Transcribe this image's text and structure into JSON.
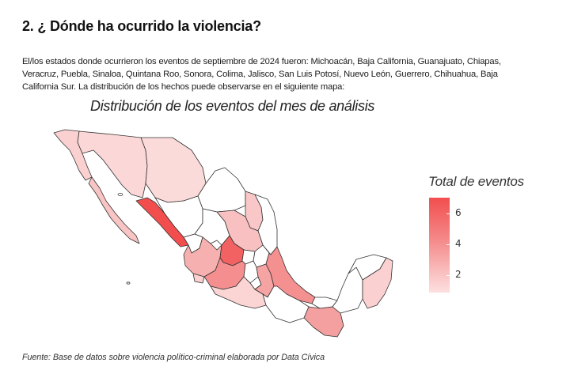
{
  "section": {
    "heading": "2. ¿ Dónde ha ocurrido la violencia?",
    "paragraph": "El/los estados donde ocurrieron los eventos de septiembre de 2024 fueron: Michoacán, Baja California, Guanajuato, Chiapas, Veracruz, Puebla, Sinaloa, Quintana Roo, Sonora, Colima, Jalisco, San Luis Potosí, Nuevo León, Guerrero, Chihuahua, Baja California Sur.  La distribución de los hechos puede observarse en el siguiente mapa:"
  },
  "map": {
    "title": "Distribución de los eventos del mes de análisis",
    "legend": {
      "title": "Total de eventos",
      "ticks": [
        "6",
        "4",
        "2"
      ],
      "color_high": "#f24e4e",
      "color_low": "#fde0e0"
    },
    "states": [
      {
        "name": "Baja California",
        "events": 2,
        "color": "#fbd0d0"
      },
      {
        "name": "Baja California Sur",
        "events": 2,
        "color": "#f9c4c4"
      },
      {
        "name": "Sonora",
        "events": 1,
        "color": "#fbd7d7"
      },
      {
        "name": "Chihuahua",
        "events": 1,
        "color": "#fbdada"
      },
      {
        "name": "Sinaloa",
        "events": 7,
        "color": "#f24e4e"
      },
      {
        "name": "Nuevo León",
        "events": 2,
        "color": "#f9c7c7"
      },
      {
        "name": "San Luis Potosí",
        "events": 2,
        "color": "#f8c0c0"
      },
      {
        "name": "Guanajuato",
        "events": 6,
        "color": "#f26262"
      },
      {
        "name": "Jalisco",
        "events": 3,
        "color": "#f7b0b0"
      },
      {
        "name": "Colima",
        "events": 2,
        "color": "#fbd0d0"
      },
      {
        "name": "Michoacán",
        "events": 4,
        "color": "#f58f8f"
      },
      {
        "name": "Guerrero",
        "events": 2,
        "color": "#fbd4d4"
      },
      {
        "name": "Puebla",
        "events": 3,
        "color": "#f6a3a3"
      },
      {
        "name": "Veracruz",
        "events": 4,
        "color": "#f49090"
      },
      {
        "name": "Chiapas",
        "events": 3,
        "color": "#f5a0a0"
      },
      {
        "name": "Quintana Roo",
        "events": 2,
        "color": "#fbd0d0"
      }
    ]
  },
  "source": "Fuente: Base de datos sobre violencia político-criminal elaborada por Data Cívica"
}
